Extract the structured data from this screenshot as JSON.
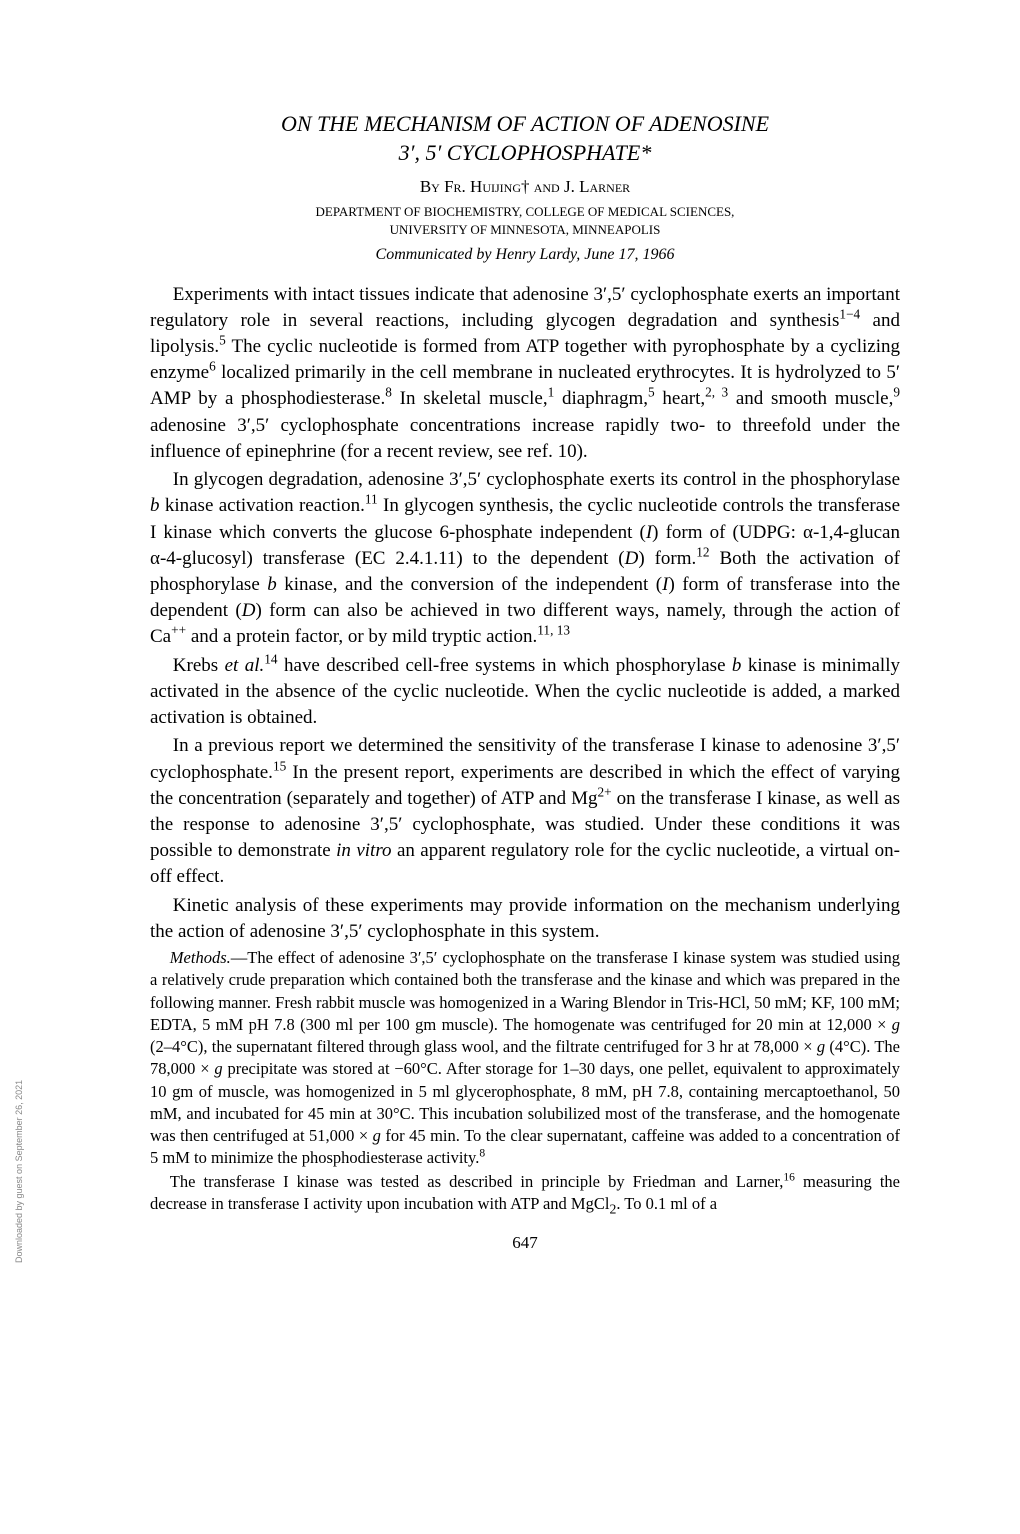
{
  "title_line1": "ON THE MECHANISM OF ACTION OF ADENOSINE",
  "title_line2": "3′, 5′ CYCLOPHOSPHATE*",
  "byline": "By Fr. Huijing† and J. Larner",
  "affiliation_line1": "DEPARTMENT OF BIOCHEMISTRY, COLLEGE OF MEDICAL SCIENCES,",
  "affiliation_line2": "UNIVERSITY OF MINNESOTA, MINNEAPOLIS",
  "communicated": "Communicated by Henry Lardy, June 17, 1966",
  "para1_a": "Experiments with intact tissues indicate that adenosine 3′,5′ cyclophosphate exerts an important regulatory role in several reactions, including glycogen degradation and synthesis",
  "para1_b": " and lipolysis.",
  "para1_c": " The cyclic nucleotide is formed from ATP together with pyrophosphate by a cyclizing enzyme",
  "para1_d": " localized primarily in the cell membrane in nucleated erythrocytes. It is hydrolyzed to 5′ AMP by a phosphodiesterase.",
  "para1_e": " In skeletal muscle,",
  "para1_f": " diaphragm,",
  "para1_g": " heart,",
  "para1_h": " and smooth muscle,",
  "para1_i": " adenosine 3′,5′ cyclophosphate concentrations increase rapidly two- to threefold under the influence of epinephrine (for a recent review, see ref. 10).",
  "para2_a": "In glycogen degradation, adenosine 3′,5′ cyclophosphate exerts its control in the phosphorylase ",
  "para2_b": " kinase activation reaction.",
  "para2_c": " In glycogen synthesis, the cyclic nucleotide controls the transferase I kinase which converts the glucose 6-phosphate independent (",
  "para2_d": ") form of (UDPG: α-1,4-glucan α-4-glucosyl) transferase (EC 2.4.1.11) to the dependent (",
  "para2_e": ") form.",
  "para2_f": " Both the activation of phosphorylase ",
  "para2_g": " kinase, and the conversion of the independent (",
  "para2_h": ") form of transferase into the dependent (",
  "para2_i": ") form can also be achieved in two different ways, namely, through the action of Ca",
  "para2_j": " and a protein factor, or by mild tryptic action.",
  "para3_a": "Krebs ",
  "para3_b": " have described cell-free systems in which phosphorylase ",
  "para3_c": " kinase is minimally activated in the absence of the cyclic nucleotide. When the cyclic nucleotide is added, a marked activation is obtained.",
  "para4_a": "In a previous report we determined the sensitivity of the transferase I kinase to adenosine 3′,5′ cyclophosphate.",
  "para4_b": " In the present report, experiments are described in which the effect of varying the concentration (separately and together) of ATP and Mg",
  "para4_c": " on the transferase I kinase, as well as the response to adenosine 3′,5′ cyclophosphate, was studied. Under these conditions it was possible to demonstrate ",
  "para4_d": " an apparent regulatory role for the cyclic nucleotide, a virtual on-off effect.",
  "para5": "Kinetic analysis of these experiments may provide information on the mechanism underlying the action of adenosine 3′,5′ cyclophosphate in this system.",
  "methods_heading": "Methods.",
  "methods1_a": "—The effect of adenosine 3′,5′ cyclophosphate on the transferase I kinase system was studied using a relatively crude preparation which contained both the transferase and the kinase and which was prepared in the following manner. Fresh rabbit muscle was homogenized in a Waring Blendor in Tris-HCl, 50 mM; KF, 100 mM; EDTA, 5 mM pH 7.8 (300 ml per 100 gm muscle). The homogenate was centrifuged for 20 min at 12,000 × ",
  "methods1_b": " (2–4°C), the supernatant filtered through glass wool, and the filtrate centrifuged for 3 hr at 78,000 × ",
  "methods1_c": " (4°C). The 78,000 × ",
  "methods1_d": " precipitate was stored at −60°C. After storage for 1–30 days, one pellet, equivalent to approximately 10 gm of muscle, was homogenized in 5 ml glycerophosphate, 8 mM, pH 7.8, containing mercaptoethanol, 50 mM, and incubated for 45 min at 30°C. This incubation solubilized most of the transferase, and the homogenate was then centrifuged at 51,000 × ",
  "methods1_e": " for 45 min. To the clear supernatant, caffeine was added to a concentration of 5 mM to minimize the phosphodiesterase activity.",
  "methods2_a": "The transferase I kinase was tested as described in principle by Friedman and Larner,",
  "methods2_b": " measuring the decrease in transferase I activity upon incubation with ATP and MgCl",
  "methods2_c": ". To 0.1 ml of a",
  "page_number": "647",
  "sidenote": "Downloaded by guest on September 26, 2021",
  "g": "g",
  "b": "b",
  "I": "I",
  "D": "D",
  "et_al": "et al.",
  "in_vitro": "in vitro",
  "sup_1_4": "1−4",
  "sup_5": "5",
  "sup_6": "6",
  "sup_8": "8",
  "sup_1": "1",
  "sup_2_3": "2, 3",
  "sup_9": "9",
  "sup_11": "11",
  "sup_12": "12",
  "sup_11_13": "11, 13",
  "sup_14": "14",
  "sup_15": "15",
  "sup_16": "16",
  "sup_pp": "++",
  "sup_2p": "2+",
  "sub_2": "2"
}
